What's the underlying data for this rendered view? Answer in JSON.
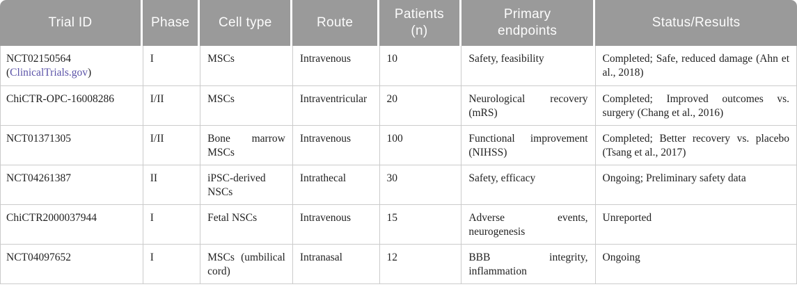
{
  "colors": {
    "header_bg": "#9a9a9a",
    "header_text": "#fcfcfc",
    "border": "#cbcbcb",
    "body_text": "#222222",
    "link": "#5a52a8"
  },
  "table": {
    "headers": {
      "trial_id": "Trial ID",
      "phase": "Phase",
      "cell_type": "Cell type",
      "route": "Route",
      "patients": "Patients\n(n)",
      "endpoints": "Primary\nendpoints",
      "status": "Status/Results"
    },
    "rows": [
      {
        "trial_id": "NCT02150564",
        "trial_link": {
          "open": "(",
          "text": "ClinicalTrials.gov",
          "close": ")"
        },
        "phase": "I",
        "cell_type": "MSCs",
        "route": "Intravenous",
        "patients": "10",
        "endpoints": "Safety, feasibility",
        "status": "Completed; Safe, reduced damage (Ahn et al., 2018)"
      },
      {
        "trial_id": "ChiCTR-OPC-16008286",
        "phase": "I/II",
        "cell_type": "MSCs",
        "route": "Intraventricular",
        "patients": "20",
        "endpoints": "Neurological recovery (mRS)",
        "status": "Completed; Improved outcomes vs. surgery (Chang et al., 2016)"
      },
      {
        "trial_id": "NCT01371305",
        "phase": "I/II",
        "cell_type": "Bone marrow MSCs",
        "route": "Intravenous",
        "patients": "100",
        "endpoints": "Functional improvement (NIHSS)",
        "status": "Completed; Better recovery vs. placebo (Tsang et al., 2017)"
      },
      {
        "trial_id": "NCT04261387",
        "phase": "II",
        "cell_type": "iPSC-derived NSCs",
        "route": "Intrathecal",
        "patients": "30",
        "endpoints": "Safety, efficacy",
        "status": "Ongoing; Preliminary safety data"
      },
      {
        "trial_id": "ChiCTR2000037944",
        "phase": "I",
        "cell_type": "Fetal NSCs",
        "route": "Intravenous",
        "patients": "15",
        "endpoints": "Adverse events, neurogenesis",
        "status": "Unreported"
      },
      {
        "trial_id": "NCT04097652",
        "phase": "I",
        "cell_type": "MSCs (umbilical cord)",
        "route": "Intranasal",
        "patients": "12",
        "endpoints": "BBB integrity, inflammation",
        "status": "Ongoing"
      }
    ]
  }
}
